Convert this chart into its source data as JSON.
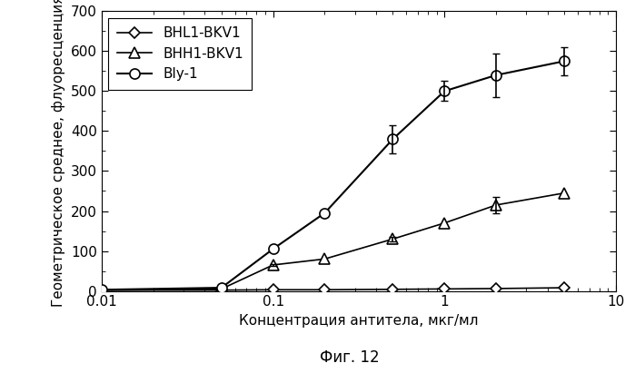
{
  "title": "",
  "xlabel": "Концентрация антитела, мкг/мл",
  "ylabel": "Геометрическое среднее, флуоресценция",
  "caption": "Фиг. 12",
  "xlim": [
    0.01,
    10
  ],
  "ylim": [
    0,
    700
  ],
  "yticks": [
    0,
    100,
    200,
    300,
    400,
    500,
    600,
    700
  ],
  "xticks": [
    0.01,
    0.1,
    1,
    10
  ],
  "xtick_labels": [
    "0.01",
    "0.1",
    "1",
    "10"
  ],
  "series": [
    {
      "label": "BHL1-BKV1",
      "marker": "D",
      "x": [
        0.01,
        0.05,
        0.1,
        0.2,
        0.5,
        1.0,
        2.0,
        5.0
      ],
      "y": [
        2,
        2,
        3,
        3,
        4,
        5,
        6,
        8
      ],
      "yerr": [
        0,
        0,
        0,
        0,
        0,
        0,
        0,
        0
      ],
      "color": "#000000",
      "markersize": 6,
      "markerfacecolor": "white",
      "linewidth": 1.2
    },
    {
      "label": "BHH1-BKV1",
      "marker": "^",
      "x": [
        0.01,
        0.05,
        0.1,
        0.2,
        0.5,
        1.0,
        2.0,
        5.0
      ],
      "y": [
        2,
        5,
        65,
        80,
        130,
        170,
        215,
        245
      ],
      "yerr": [
        0,
        0,
        3,
        0,
        5,
        0,
        20,
        0
      ],
      "color": "#000000",
      "markersize": 8,
      "markerfacecolor": "white",
      "linewidth": 1.2
    },
    {
      "label": "Bly-1",
      "marker": "o",
      "x": [
        0.01,
        0.05,
        0.1,
        0.2,
        0.5,
        1.0,
        2.0,
        5.0
      ],
      "y": [
        3,
        8,
        105,
        195,
        380,
        500,
        540,
        575
      ],
      "yerr": [
        0,
        0,
        0,
        0,
        35,
        25,
        55,
        35
      ],
      "color": "#000000",
      "markersize": 8,
      "markerfacecolor": "white",
      "linewidth": 1.5
    }
  ],
  "legend_loc": "upper left",
  "legend_fontsize": 11,
  "background_color": "#ffffff",
  "font_size": 11,
  "axis_font_size": 11,
  "caption_font_size": 12
}
